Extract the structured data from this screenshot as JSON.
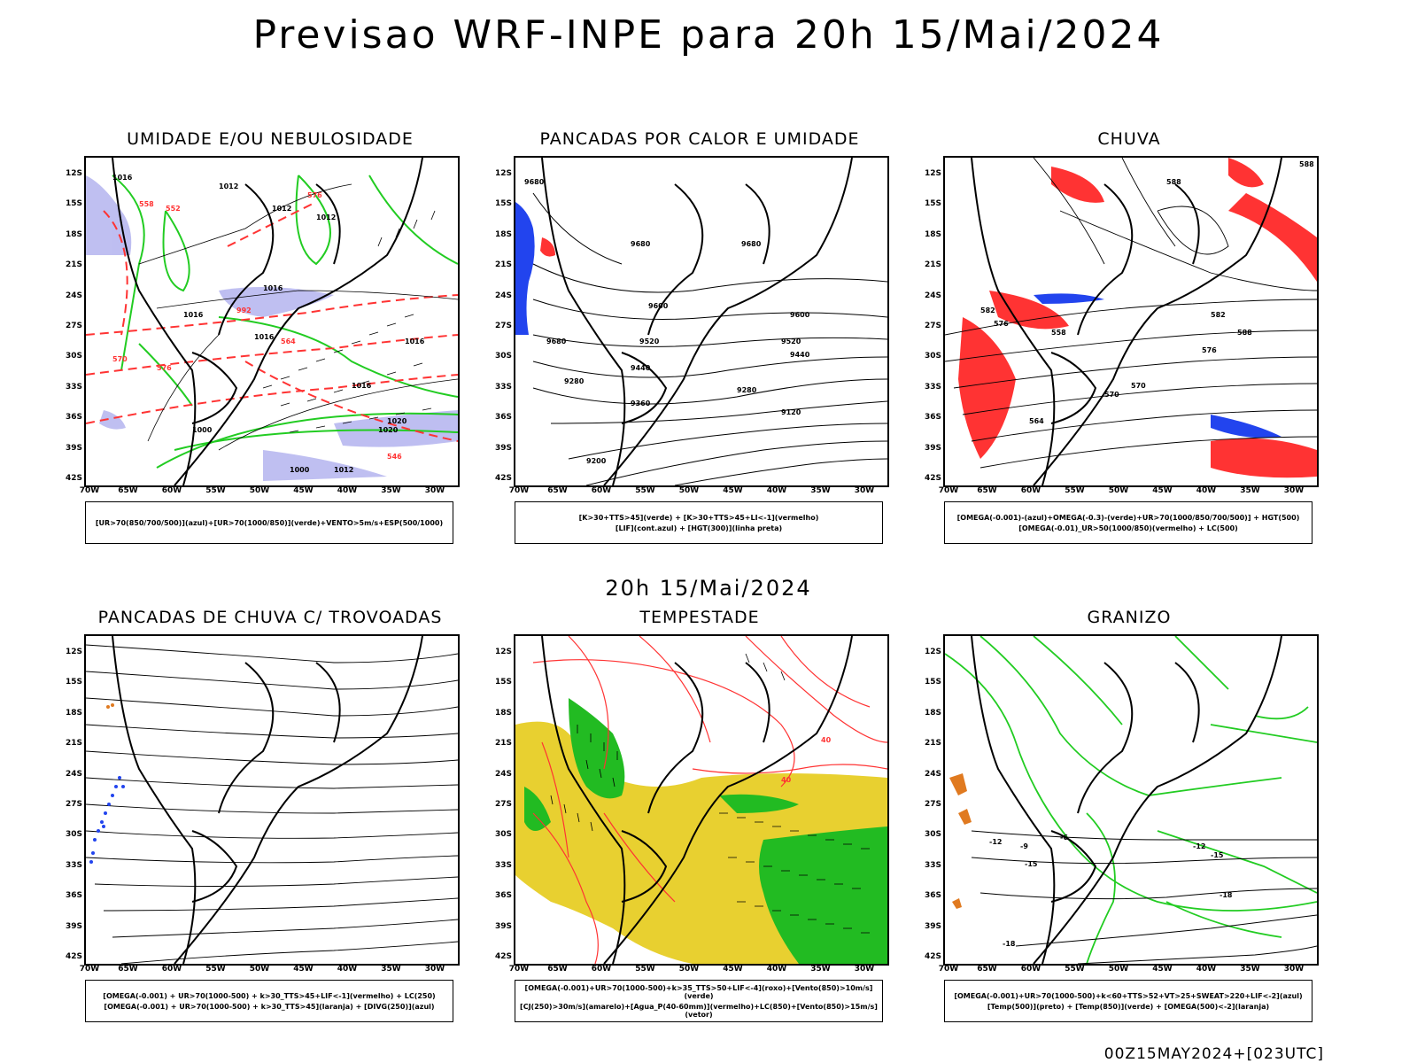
{
  "header": {
    "title": "Previsao WRF-INPE  para 20h 15/Mai/2024",
    "row_time": "20h 15/Mai/2024",
    "footer": "00Z15MAY2024+[023UTC]"
  },
  "axes": {
    "lat": [
      "12S",
      "15S",
      "18S",
      "21S",
      "24S",
      "27S",
      "30S",
      "33S",
      "36S",
      "39S",
      "42S"
    ],
    "lon": [
      "70W",
      "65W",
      "60W",
      "55W",
      "50W",
      "45W",
      "40W",
      "35W",
      "30W"
    ]
  },
  "panels": [
    {
      "id": "umidade",
      "title": "UMIDADE E/OU NEBULOSIDADE",
      "legend": [
        "[UR>70(850/700/500)](azul)+[UR>70(1000/850)](verde)+VENTO>5m/s+ESP(500/1000)"
      ],
      "contour_labels": [
        "1012",
        "1012",
        "1012",
        "1016",
        "1016",
        "1016",
        "1016",
        "1016",
        "1020",
        "1020",
        "1000",
        "1000",
        "1012",
        "1016",
        "992",
        "576",
        "570",
        "564",
        "558",
        "552",
        "576",
        "546"
      ]
    },
    {
      "id": "pancadas-calor",
      "title": "PANCADAS POR CALOR E UMIDADE",
      "legend": [
        "[K>30+TTS>45](verde) + [K>30+TTS>45+LI<-1](vermelho)",
        "[LIF](cont.azul) + [HGT(300)](linha preta)"
      ],
      "contour_labels": [
        "9680",
        "9680",
        "9680",
        "9600",
        "9520",
        "9440",
        "9360",
        "9280",
        "9280",
        "9120",
        "9200",
        "9680",
        "9600",
        "9520",
        "9440"
      ]
    },
    {
      "id": "chuva",
      "title": "CHUVA",
      "legend": [
        "[OMEGA(-0.001)-(azul)+OMEGA(-0.3)-(verde)+UR>70(1000/850/700/500)] + HGT(500)",
        "[OMEGA(-0.01)_UR>50(1000/850)(vermelho) + LC(500)"
      ],
      "contour_labels": [
        "588",
        "588",
        "588",
        "582",
        "576",
        "570",
        "564",
        "558",
        "576",
        "582",
        "570"
      ]
    },
    {
      "id": "pancadas-trovoadas",
      "title": "PANCADAS DE CHUVA C/ TROVOADAS",
      "legend": [
        "[OMEGA(-0.001) + UR>70(1000-500) + k>30_TTS>45+LIF<-1](vermelho) + LC(250)",
        "[OMEGA(-0.001) + UR>70(1000-500) + k>30_TTS>45](laranja) + [DIVG(250)](azul)"
      ],
      "contour_labels": []
    },
    {
      "id": "tempestade",
      "title": "TEMPESTADE",
      "legend": [
        "[OMEGA(-0.001)+UR>70(1000-500)+k>35_TTS>50+LIF<-4](roxo)+[Vento(850)>10m/s](verde)",
        "[CJ(250)>30m/s](amarelo)+[Agua_P(40-60mm)](vermelho)+LC(850)+[Vento(850)>15m/s](vetor)"
      ],
      "contour_labels": [
        "40",
        "40"
      ]
    },
    {
      "id": "granizo",
      "title": "GRANIZO",
      "legend": [
        "[OMEGA(-0.001)+UR>70(1000-500)+k<60+TTS>52+VT>25+SWEAT>220+LIF<-2](azul)",
        "[Temp(500)](preto) + [Temp(850)](verde) + [OMEGA(500)<-2](laranja)"
      ],
      "contour_labels": [
        "-12",
        "-12",
        "-15",
        "-15",
        "-18",
        "-18",
        "-6",
        "-9"
      ]
    }
  ],
  "colors": {
    "blue_fill": "#b8b8f0",
    "green_line": "#22cc22",
    "red_line": "#ff3333",
    "red_fill": "#ff3333",
    "yellow_fill": "#e8d030",
    "green_fill": "#22bb22",
    "blue_dots": "#2244ee",
    "orange": "#e07a20"
  }
}
